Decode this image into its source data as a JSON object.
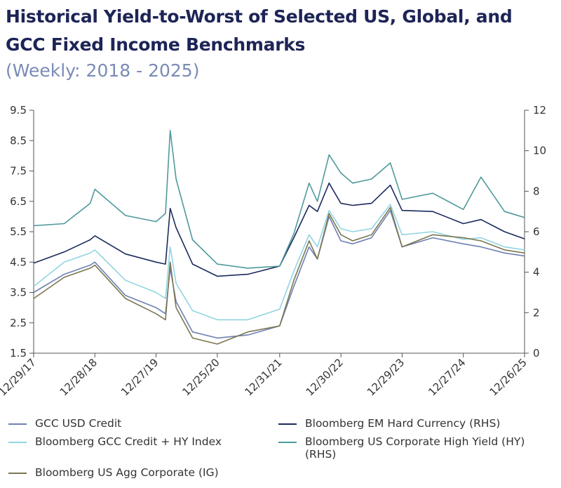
{
  "title": "Historical Yield-to-Worst of Selected US, Global, and GCC Fixed Income Benchmarks",
  "subtitle": "(Weekly: 2018 - 2025)",
  "chart_data": {
    "type": "line",
    "x": [
      "12/29/17",
      "06/29/18",
      "11/30/18",
      "12/28/18",
      "06/28/19",
      "12/27/19",
      "02/21/20",
      "03/20/20",
      "04/24/20",
      "07/31/20",
      "12/25/20",
      "06/25/21",
      "12/31/21",
      "03/25/22",
      "06/24/22",
      "08/12/22",
      "10/21/22",
      "12/30/22",
      "03/10/23",
      "06/30/23",
      "10/20/23",
      "12/29/23",
      "06/28/24",
      "12/27/24",
      "04/11/25",
      "08/29/25",
      "12/26/25"
    ],
    "xlim": [
      "12/29/17",
      "12/26/25"
    ],
    "xticks": [
      "12/29/17",
      "12/28/18",
      "12/27/19",
      "12/25/20",
      "12/31/21",
      "12/30/22",
      "12/29/23",
      "12/27/24",
      "12/26/25"
    ],
    "ylim": [
      1.5,
      9.5
    ],
    "yticks": [
      1.5,
      2.5,
      3.5,
      4.5,
      5.5,
      6.5,
      7.5,
      8.5,
      9.5
    ],
    "y2lim": [
      0,
      12
    ],
    "y2ticks": [
      0,
      2,
      4,
      6,
      8,
      10,
      12
    ],
    "series": [
      {
        "name": "GCC USD Credit",
        "color": "#6e80b3",
        "values": [
          3.5,
          4.1,
          4.4,
          4.5,
          3.4,
          3.0,
          2.8,
          4.3,
          3.2,
          2.2,
          2.0,
          2.1,
          2.4,
          3.7,
          5.0,
          4.6,
          6.0,
          5.2,
          5.1,
          5.3,
          6.2,
          5.0,
          5.3,
          5.1,
          5.0,
          4.8,
          4.7
        ]
      },
      {
        "name": "Bloomberg EM Hard Currency (RHS)",
        "color": "#1b2a5c",
        "axis": "y2",
        "values": [
          4.45,
          5.0,
          5.6,
          5.8,
          4.9,
          4.5,
          4.4,
          7.15,
          6.2,
          4.4,
          3.8,
          3.9,
          4.3,
          5.7,
          7.3,
          7.0,
          8.4,
          7.4,
          7.3,
          7.4,
          8.3,
          7.05,
          7.0,
          6.4,
          6.6,
          6.0,
          5.65
        ]
      },
      {
        "name": "Bloomberg GCC Credit + HY Index",
        "color": "#92d5e2",
        "values": [
          3.7,
          4.5,
          4.8,
          4.9,
          3.9,
          3.5,
          3.3,
          5.0,
          3.8,
          2.9,
          2.6,
          2.6,
          2.95,
          4.2,
          5.4,
          5.0,
          6.2,
          5.6,
          5.5,
          5.6,
          6.4,
          5.4,
          5.5,
          5.25,
          5.3,
          5.0,
          4.9
        ]
      },
      {
        "name": "Bloomberg US Corporate High Yield (HY) (RHS)",
        "color": "#4f9a9c",
        "axis": "y2",
        "values": [
          6.3,
          6.4,
          7.4,
          8.1,
          6.8,
          6.5,
          6.9,
          11.0,
          8.6,
          5.6,
          4.4,
          4.2,
          4.3,
          5.9,
          8.4,
          7.5,
          9.8,
          8.9,
          8.4,
          8.6,
          9.4,
          7.6,
          7.9,
          7.1,
          8.7,
          7.0,
          6.7
        ]
      },
      {
        "name": "Bloomberg US Agg Corporate  (IG)",
        "color": "#7b7650",
        "values": [
          3.3,
          4.0,
          4.3,
          4.4,
          3.3,
          2.8,
          2.6,
          4.5,
          3.0,
          2.0,
          1.8,
          2.2,
          2.4,
          3.9,
          5.2,
          4.6,
          6.1,
          5.4,
          5.2,
          5.4,
          6.3,
          5.0,
          5.4,
          5.3,
          5.2,
          4.9,
          4.8
        ]
      }
    ]
  }
}
